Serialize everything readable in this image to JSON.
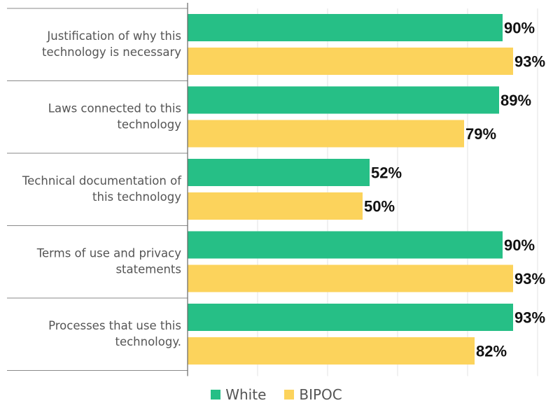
{
  "chart_data": {
    "type": "bar",
    "orientation": "horizontal",
    "categories": [
      [
        "Justification of why this",
        "technology is necessary"
      ],
      [
        "Laws connected to this",
        "technology"
      ],
      [
        "Technical documentation of",
        "this technology"
      ],
      [
        "Terms of use and privacy",
        "statements"
      ],
      [
        "Processes that use this",
        "technology."
      ]
    ],
    "series": [
      {
        "name": "White",
        "color": "#26bf86",
        "values": [
          90,
          89,
          52,
          90,
          93
        ],
        "labels": [
          "90%",
          "89%",
          "52%",
          "90%",
          "93%"
        ]
      },
      {
        "name": "BIPOC",
        "color": "#fcd35c",
        "values": [
          93,
          79,
          50,
          93,
          82
        ],
        "labels": [
          "93%",
          "79%",
          "50%",
          "93%",
          "82%"
        ]
      }
    ],
    "xlim": [
      0,
      100
    ],
    "value_suffix": "%",
    "grid": true,
    "legend": "bottom"
  }
}
